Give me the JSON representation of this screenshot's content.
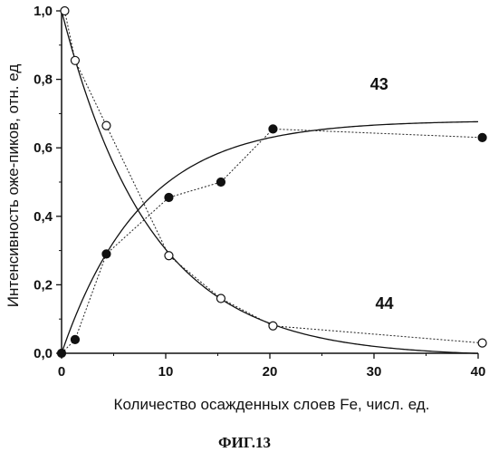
{
  "chart_data": {
    "type": "scatter",
    "xlabel": "Количество осажденных слоев Fe, числ. ед.",
    "ylabel": "Интенсивность оже-пиков, отн. ед",
    "caption": "ФИГ.13",
    "xlim": [
      0,
      40
    ],
    "ylim": [
      0,
      1.0
    ],
    "xticks": [
      "0",
      "10",
      "20",
      "30",
      "40"
    ],
    "yticks": [
      "0,0",
      "0,2",
      "0,4",
      "0,6",
      "0,8",
      "1,0"
    ],
    "grid": false,
    "series": [
      {
        "name": "43",
        "marker": "filled-circle",
        "points": [
          [
            0,
            0.0
          ],
          [
            1.3,
            0.04
          ],
          [
            4.3,
            0.29
          ],
          [
            10.3,
            0.455
          ],
          [
            15.3,
            0.5
          ],
          [
            20.3,
            0.655
          ],
          [
            40.4,
            0.63
          ]
        ],
        "fit": {
          "kind": "saturation",
          "a": 0.68,
          "k": 0.13
        }
      },
      {
        "name": "44",
        "marker": "open-circle",
        "points": [
          [
            0.3,
            1.0
          ],
          [
            1.3,
            0.855
          ],
          [
            4.3,
            0.665
          ],
          [
            10.3,
            0.285
          ],
          [
            15.3,
            0.16
          ],
          [
            20.3,
            0.08
          ],
          [
            40.4,
            0.03
          ]
        ],
        "fit": {
          "kind": "decay",
          "k": 0.117,
          "offset": -0.01
        }
      }
    ],
    "annotations": [
      {
        "text": "43",
        "x": 30.5,
        "y": 0.77
      },
      {
        "text": "44",
        "x": 31,
        "y": 0.13
      }
    ]
  }
}
